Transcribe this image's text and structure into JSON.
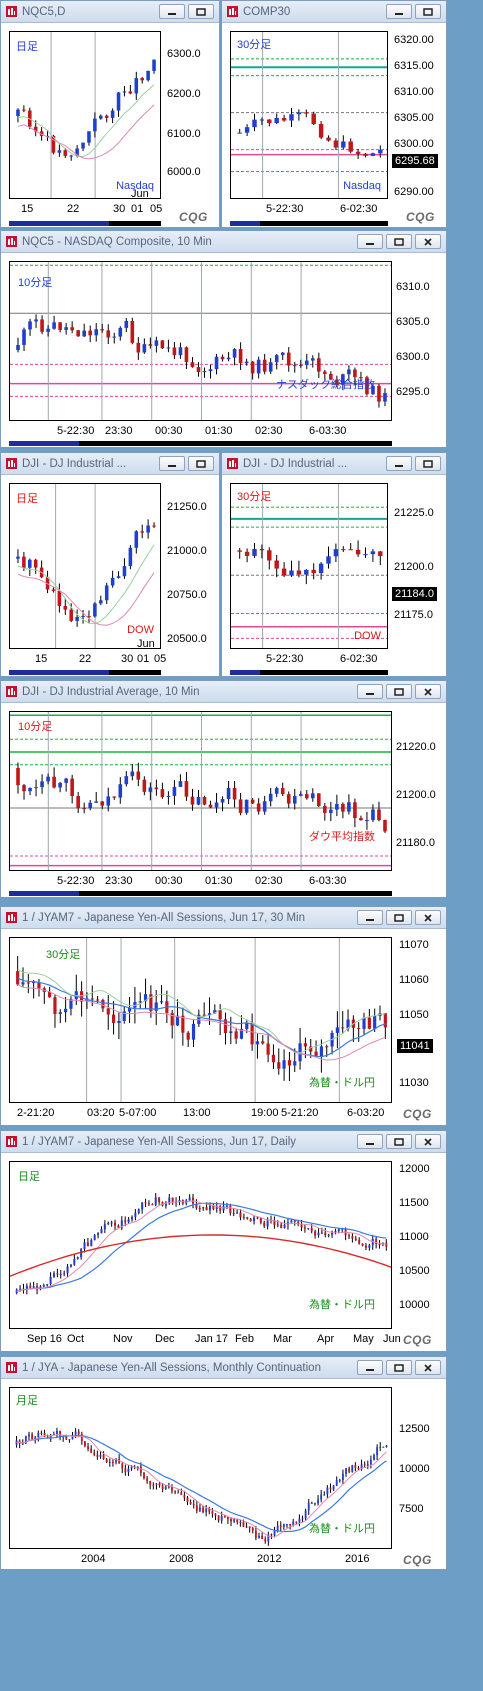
{
  "colors": {
    "up": "#1f3fd0",
    "down": "#c0171b",
    "support": "#e0489b",
    "resist": "#14b83a",
    "teal": "#18a39a",
    "ma_blue": "#3a7be0",
    "ma_pink": "#e487b2",
    "ma_green": "#9fcf9f"
  },
  "branding": {
    "cqg": "CQG"
  },
  "windows": [
    {
      "id": "nqc5d",
      "title": "NQC5,D",
      "tf": "日足",
      "tf_color": "#1f3fd0",
      "label": "Nasdaq",
      "label_color": "#1f3fd0",
      "yticks": [
        "6300.0",
        "6200.0",
        "6100.0",
        "6000.0"
      ],
      "xticks": [
        "15",
        "22",
        "30",
        "01",
        "05"
      ],
      "xsub": "Jun",
      "cqg": true
    },
    {
      "id": "comp30",
      "title": "COMP30",
      "tf": "30分足",
      "tf_color": "#1f3fd0",
      "label": "Nasdaq",
      "label_color": "#1f3fd0",
      "yticks": [
        "6320.00",
        "6315.00",
        "6310.00",
        "6305.00",
        "6300.00",
        "6290.00"
      ],
      "last": "6295.68",
      "xticks": [
        "5-22:30",
        "6-02:30"
      ],
      "cqg": true
    },
    {
      "id": "nqc5_10",
      "title": "NQC5 - NASDAQ Composite, 10 Min",
      "tf": "10分足",
      "tf_color": "#1f3fd0",
      "label": "ナスダック総合指数",
      "label_color": "#1f3fd0",
      "yticks": [
        "6310.0",
        "6305.0",
        "6300.0",
        "6295.0"
      ],
      "xticks": [
        "5-22:30",
        "23:30",
        "00:30",
        "01:30",
        "02:30",
        "6-03:30"
      ]
    },
    {
      "id": "dji_d",
      "title": "DJI - DJ Industrial ...",
      "tf": "日足",
      "tf_color": "#d71a1a",
      "label": "DOW",
      "label_color": "#d71a1a",
      "yticks": [
        "21250.0",
        "21000.0",
        "20750.0",
        "20500.0"
      ],
      "xticks": [
        "15",
        "22",
        "30",
        "01",
        "05"
      ],
      "xsub": "Jun"
    },
    {
      "id": "dji_30",
      "title": "DJI - DJ Industrial ...",
      "tf": "30分足",
      "tf_color": "#d71a1a",
      "label": "DOW",
      "label_color": "#d71a1a",
      "yticks": [
        "21225.0",
        "21200.0",
        "21175.0"
      ],
      "last": "21184.0",
      "xticks": [
        "5-22:30",
        "6-02:30"
      ]
    },
    {
      "id": "dji_10",
      "title": "DJI - DJ Industrial Average, 10 Min",
      "tf": "10分足",
      "tf_color": "#d71a1a",
      "label": "ダウ平均指数",
      "label_color": "#d71a1a",
      "yticks": [
        "21220.0",
        "21200.0",
        "21180.0"
      ],
      "xticks": [
        "5-22:30",
        "23:30",
        "00:30",
        "01:30",
        "02:30",
        "6-03:30"
      ]
    },
    {
      "id": "jyam7_30",
      "title": "1 / JYAM7 - Japanese Yen-All Sessions, Jun 17, 30 Min",
      "tf": "30分足",
      "tf_color": "#1a8a1a",
      "label": "為替・ドル円",
      "label_color": "#1a8a1a",
      "yticks": [
        "11070",
        "11060",
        "11050",
        "11041",
        "11030"
      ],
      "last": "11041",
      "xticks": [
        "2-21:20",
        "03:20",
        "5-07:00",
        "13:00",
        "19:00",
        "5-21:20",
        "6-03:20"
      ],
      "cqg": true
    },
    {
      "id": "jyam7_d",
      "title": "1 / JYAM7 - Japanese Yen-All Sessions, Jun 17, Daily",
      "tf": "日足",
      "tf_color": "#1a8a1a",
      "label": "為替・ドル円",
      "label_color": "#1a8a1a",
      "yticks": [
        "12000",
        "11500",
        "11000",
        "10500",
        "10000"
      ],
      "xticks": [
        "Sep 16",
        "Oct",
        "Nov",
        "Dec",
        "Jan 17",
        "Feb",
        "Mar",
        "Apr",
        "May",
        "Jun"
      ],
      "cqg": true
    },
    {
      "id": "jya_m",
      "title": "1 / JYA - Japanese Yen-All Sessions, Monthly Continuation",
      "tf": "月足",
      "tf_color": "#1a8a1a",
      "label": "為替・ドル円",
      "label_color": "#1a8a1a",
      "yticks": [
        "12500",
        "10000",
        "7500"
      ],
      "xticks": [
        "2004",
        "2008",
        "2012",
        "2016"
      ],
      "cqg": true
    }
  ]
}
